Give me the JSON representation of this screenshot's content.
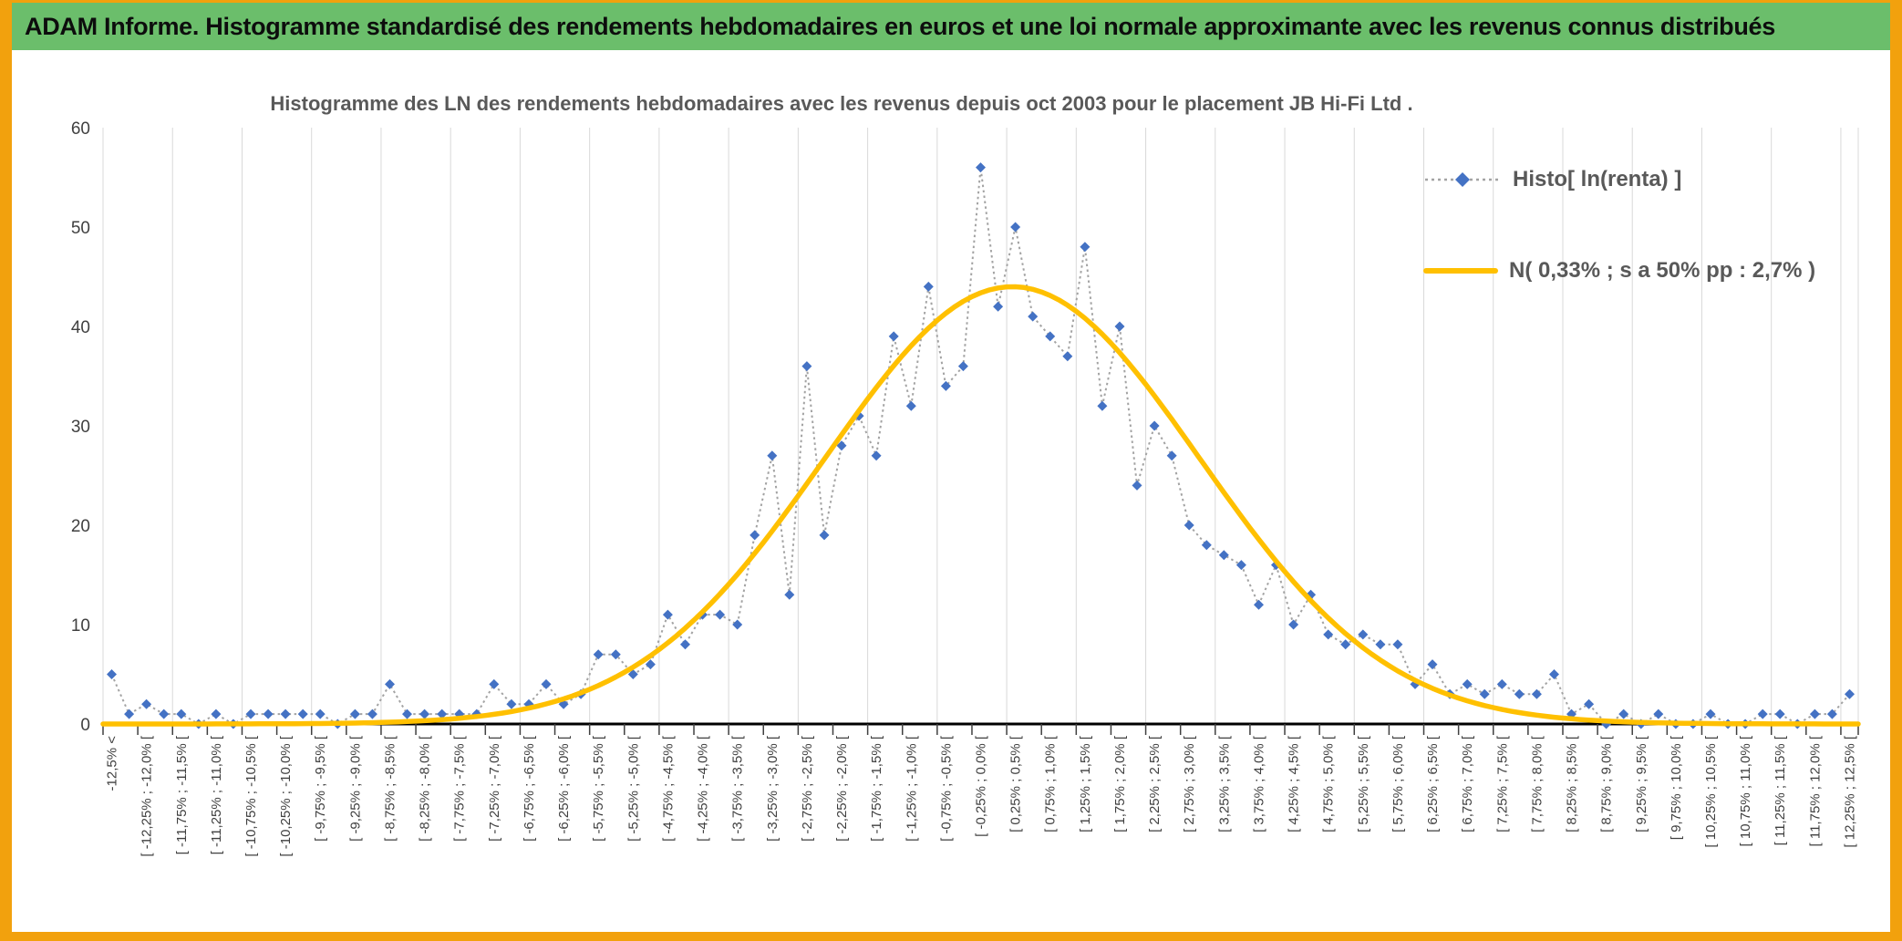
{
  "header": {
    "title": "ADAM Informe. Histogramme standardisé des rendements hebdomadaires en euros et une loi normale approximante avec les revenus connus distribués"
  },
  "chart_data": {
    "type": "line",
    "title": "Histogramme des LN des rendements hebdomadaires avec les revenus depuis oct 2003 pour le placement JB Hi-Fi Ltd .",
    "legend_position": "top-right",
    "grid": "vertical-only",
    "y_axis": {
      "min": 0,
      "max": 60,
      "step": 10,
      "tick_labels": [
        "0",
        "10",
        "20",
        "30",
        "40",
        "50",
        "60"
      ]
    },
    "x_axis": {
      "bin_min_pct": -12.5,
      "bin_step_pct": 0.25,
      "bin_count": 101,
      "label_every_bins": 2,
      "gridline_every_bins": 4,
      "labels": [
        "-12,5% <",
        "[ -12,25% ; -12,0% [",
        "[ -11,75% ; -11,5% [",
        "[ -11,25% ; -11,0% [",
        "[ -10,75% ; -10,5% [",
        "[ -10,25% ; -10,0% [",
        "[ -9,75% ; -9,5% [",
        "[ -9,25% ; -9,0% [",
        "[ -8,75% ; -8,5% [",
        "[ -8,25% ; -8,0% [",
        "[ -7,75% ; -7,5% [",
        "[ -7,25% ; -7,0% [",
        "[ -6,75% ; -6,5% [",
        "[ -6,25% ; -6,0% [",
        "[ -5,75% ; -5,5% [",
        "[ -5,25% ; -5,0% [",
        "[ -4,75% ; -4,5% [",
        "[ -4,25% ; -4,0% [",
        "[ -3,75% ; -3,5% [",
        "[ -3,25% ; -3,0% [",
        "[ -2,75% ; -2,5% [",
        "[ -2,25% ; -2,0% [",
        "[ -1,75% ; -1,5% [",
        "[ -1,25% ; -1,0% [",
        "[ -0,75% ; -0,5% [",
        "[ -0,25% ; 0,0% [",
        "[ 0,25% ; 0,5% [",
        "[ 0,75% ; 1,0% [",
        "[ 1,25% ; 1,5% [",
        "[ 1,75% ; 2,0% [",
        "[ 2,25% ; 2,5% [",
        "[ 2,75% ; 3,0% [",
        "[ 3,25% ; 3,5% [",
        "[ 3,75% ; 4,0% [",
        "[ 4,25% ; 4,5% [",
        "[ 4,75% ; 5,0% [",
        "[ 5,25% ; 5,5% [",
        "[ 5,75% ; 6,0% [",
        "[ 6,25% ; 6,5% [",
        "[ 6,75% ; 7,0% [",
        "[ 7,25% ; 7,5% [",
        "[ 7,75% ; 8,0% [",
        "[ 8,25% ; 8,5% [",
        "[ 8,75% ; 9,0% [",
        "[ 9,25% ; 9,5% [",
        "[ 9,75% ; 10,0% [",
        "[ 10,25% ; 10,5% [",
        "[ 10,75% ; 11,0% [",
        "[ 11,25% ; 11,5% [",
        "[ 11,75% ; 12,0% [",
        "[ 12,25% ; 12,5% ["
      ]
    },
    "series": [
      {
        "name": "Histo[ ln(renta) ]",
        "kind": "dotted-line-with-diamond-markers",
        "marker_color": "#4472C4",
        "line_color": "#A3A3A3",
        "values": [
          5,
          1,
          2,
          1,
          1,
          0,
          1,
          0,
          1,
          1,
          1,
          1,
          1,
          0,
          1,
          1,
          4,
          1,
          1,
          1,
          1,
          1,
          4,
          2,
          2,
          4,
          2,
          3,
          7,
          7,
          5,
          6,
          11,
          8,
          11,
          11,
          10,
          19,
          27,
          13,
          36,
          19,
          28,
          31,
          27,
          39,
          32,
          44,
          34,
          36,
          56,
          42,
          50,
          41,
          39,
          37,
          48,
          32,
          40,
          24,
          30,
          27,
          20,
          18,
          17,
          16,
          12,
          16,
          10,
          13,
          9,
          8,
          9,
          8,
          8,
          4,
          6,
          3,
          4,
          3,
          4,
          3,
          3,
          5,
          1,
          2,
          0,
          1,
          0,
          1,
          0,
          0,
          1,
          0,
          0,
          1,
          1,
          0,
          1,
          1,
          3
        ]
      },
      {
        "name": "N( 0,33% ; s a 50% pp : 2,7% )",
        "kind": "normal-curve",
        "color": "#FFC000",
        "mean_pct": 0.33,
        "sigma_pct": 2.7,
        "peak": 44
      }
    ],
    "colors": {
      "gridline": "#D9D9D9",
      "axis": "#000000",
      "title_text": "#595959",
      "axis_text": "#404040",
      "banner_green": "#6BBE6B",
      "frame_orange": "#F2A10D"
    }
  }
}
